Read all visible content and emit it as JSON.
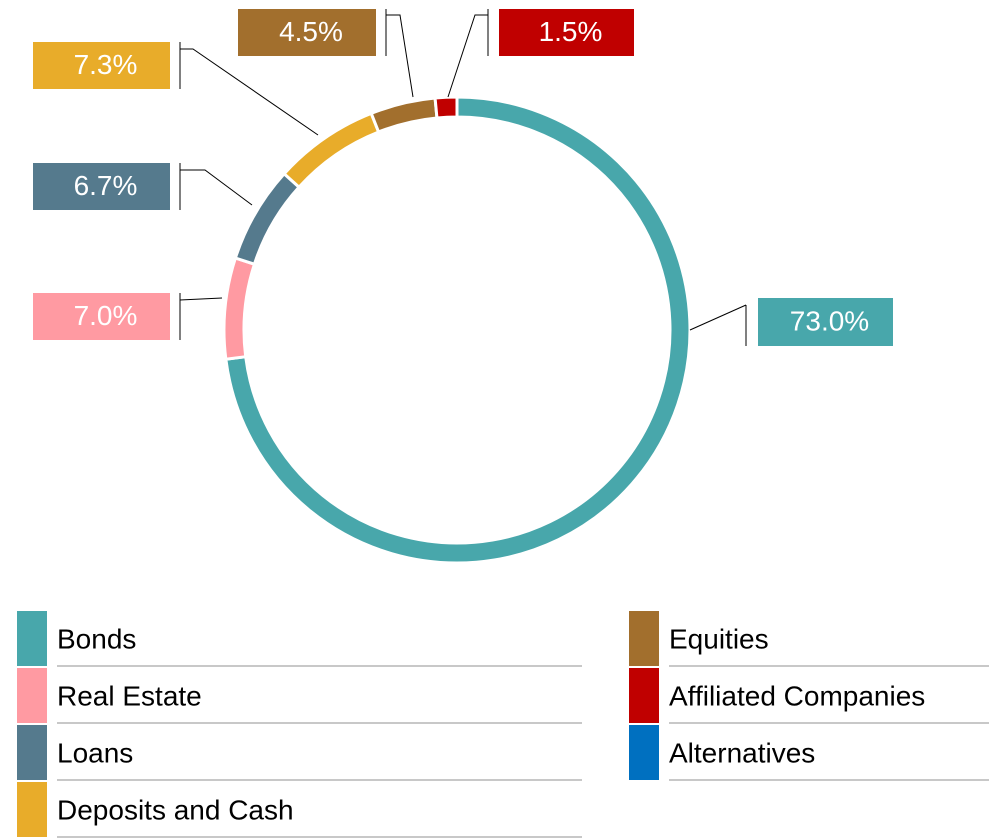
{
  "chart_data": {
    "type": "donut",
    "categories": [
      "Bonds",
      "Real Estate",
      "Loans",
      "Deposits and Cash",
      "Equities",
      "Affiliated Companies",
      "Alternatives"
    ],
    "values": [
      73.0,
      7.0,
      6.7,
      7.3,
      4.5,
      1.5,
      0
    ],
    "value_labels": [
      "73.0%",
      "7.0%",
      "6.7%",
      "7.3%",
      "4.5%",
      "1.5%",
      null
    ],
    "colors": [
      "#48a7ab",
      "#ff9aa2",
      "#557a8d",
      "#e8ac2a",
      "#a26f2d",
      "#c00000",
      "#0070c0"
    ]
  }
}
